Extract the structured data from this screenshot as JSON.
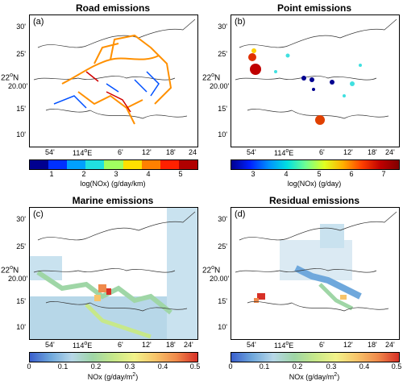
{
  "panels": [
    {
      "title": "Road emissions",
      "label": "(a)",
      "yticks": [
        "30'",
        "25'",
        "20.00'",
        "15'",
        "10'"
      ],
      "lat_label": "22",
      "lat_sup": "o",
      "lat_suffix": "N",
      "xticks": [
        "54'",
        "114",
        "6'",
        "12'",
        "18'",
        "24"
      ],
      "xtick_deg": "o",
      "xtick_e": "E",
      "colorbar": {
        "ticks": [
          "1",
          "2",
          "3",
          "4",
          "5"
        ],
        "title": "log(NOx) (g/day/km)",
        "colors": [
          "#00008f",
          "#0030ff",
          "#00a0ff",
          "#20e0e0",
          "#a0ff60",
          "#ffe000",
          "#ff8000",
          "#ff2000",
          "#b00000"
        ]
      }
    },
    {
      "title": "Point emissions",
      "label": "(b)",
      "yticks": [
        "30'",
        "25'",
        "20.00'",
        "15'",
        "10'"
      ],
      "lat_label": "22",
      "lat_sup": "o",
      "lat_suffix": "N",
      "xticks": [
        "54'",
        "114",
        "6'",
        "12'",
        "18'",
        "24'"
      ],
      "xtick_deg": "o",
      "xtick_e": "E",
      "colorbar": {
        "ticks": [
          "3",
          "4",
          "5",
          "6",
          "7"
        ],
        "title": "log(NOx) (g/day)",
        "colors": [
          "#00008f",
          "#0020ff",
          "#0090ff",
          "#00e0e0",
          "#70ff90",
          "#e0ff20",
          "#ffb000",
          "#ff4000",
          "#c00000",
          "#800000"
        ]
      }
    },
    {
      "title": "Marine emissions",
      "label": "(c)",
      "yticks": [
        "30'",
        "25'",
        "20.00'",
        "15'",
        "10'"
      ],
      "lat_label": "22",
      "lat_sup": "o",
      "lat_suffix": "N",
      "xticks": [
        "54'",
        "114",
        "6'",
        "12'",
        "18'",
        "24'"
      ],
      "xtick_deg": "o",
      "xtick_e": "E",
      "colorbar": {
        "ticks": [
          "0",
          "0.1",
          "0.2",
          "0.3",
          "0.4",
          "0.5"
        ],
        "title": "NOx (g/day/m",
        "title_sup": "2",
        "title_end": ")",
        "colors": [
          "#3a5fcd",
          "#6fa8dc",
          "#b7d7e8",
          "#9fd6a6",
          "#c7e88a",
          "#f2f28a",
          "#f7c46a",
          "#f08a4b",
          "#d73027"
        ]
      }
    },
    {
      "title": "Residual emissions",
      "label": "(d)",
      "yticks": [
        "30'",
        "25'",
        "20.00'",
        "15'",
        "10'"
      ],
      "lat_label": "22",
      "lat_sup": "o",
      "lat_suffix": "N",
      "xticks": [
        "54'",
        "114",
        "6'",
        "12'",
        "18'",
        "24'"
      ],
      "xtick_deg": "o",
      "xtick_e": "E",
      "colorbar": {
        "ticks": [
          "0",
          "0.1",
          "0.2",
          "0.3",
          "0.4",
          "0.5"
        ],
        "title": "NOx (g/day/m",
        "title_sup": "2",
        "title_end": ")",
        "colors": [
          "#3a5fcd",
          "#6fa8dc",
          "#b7d7e8",
          "#9fd6a6",
          "#c7e88a",
          "#f2f28a",
          "#f7c46a",
          "#f08a4b",
          "#d73027"
        ]
      }
    }
  ]
}
